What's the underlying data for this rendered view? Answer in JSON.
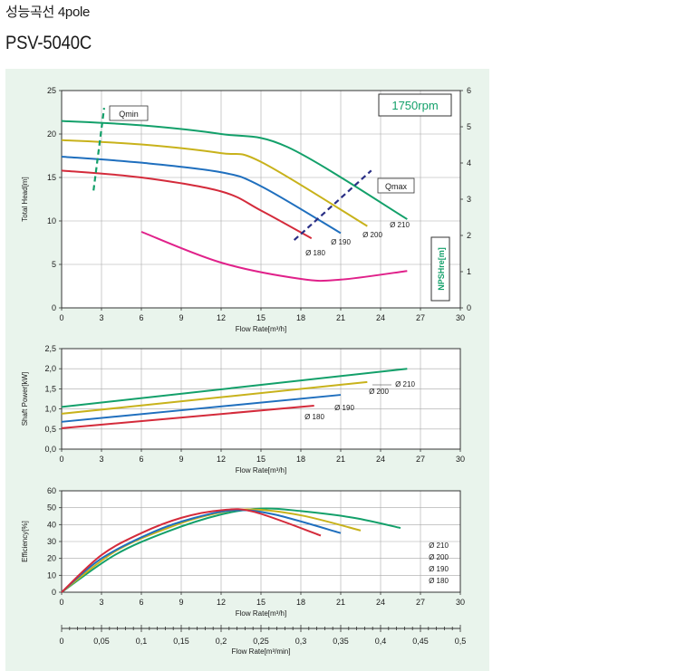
{
  "header": {
    "korean_title": "성능곡선 4pole",
    "model": "PSV-5040C"
  },
  "colors": {
    "d210": "#13a06a",
    "d200": "#c8b21b",
    "d190": "#1f6fbe",
    "d180": "#d42b3b",
    "npsh": "#e0218a",
    "qline": "#13a06a",
    "qmax_line": "#2a2f85",
    "panel_bg": "#e9f4ec",
    "grid": "#a8a8a8"
  },
  "chart_data": [
    {
      "type": "line",
      "title": "",
      "xlabel": "Flow Rate[m³/h]",
      "ylabel": "Total Head[m]",
      "y2label": "NPSHre[m]",
      "speed_label": "1750rpm",
      "xlim": [
        0,
        30
      ],
      "ylim": [
        0,
        25
      ],
      "y2lim": [
        0,
        6
      ],
      "x_ticks": [
        "0",
        "3",
        "6",
        "9",
        "12",
        "15",
        "18",
        "21",
        "24",
        "27",
        "30"
      ],
      "y_ticks": [
        "0",
        "5",
        "10",
        "15",
        "20",
        "25"
      ],
      "y2_ticks": [
        "0",
        "1",
        "2",
        "3",
        "4",
        "5",
        "6"
      ],
      "grid": true,
      "series": [
        {
          "name": "Ø 210",
          "color": "d210",
          "x": [
            0,
            6,
            12,
            17,
            26
          ],
          "y": [
            21.5,
            21,
            20,
            18.5,
            10.2
          ]
        },
        {
          "name": "Ø 200",
          "color": "d200",
          "x": [
            0,
            6,
            12,
            15,
            23
          ],
          "y": [
            19.3,
            18.8,
            17.8,
            16.8,
            9.4
          ]
        },
        {
          "name": "Ø 190",
          "color": "d190",
          "x": [
            0,
            6,
            12,
            15,
            21
          ],
          "y": [
            17.4,
            16.7,
            15.6,
            14,
            8.6
          ]
        },
        {
          "name": "Ø 180",
          "color": "d180",
          "x": [
            0,
            6,
            12,
            15,
            18.8
          ],
          "y": [
            15.8,
            15,
            13.4,
            11.2,
            8
          ]
        },
        {
          "name": "NPSHre",
          "color": "npsh",
          "axis": "y2",
          "x": [
            6,
            12,
            18,
            21,
            26
          ],
          "y": [
            2.1,
            1.25,
            0.8,
            0.78,
            1.02
          ]
        }
      ],
      "annotations": {
        "qmin": "Qmin",
        "qmax": "Qmax",
        "qmin_line": {
          "x": [
            2.4,
            3.2
          ],
          "y": [
            13.5,
            23
          ]
        },
        "qmax_line": {
          "x": [
            17.5,
            23.3
          ],
          "y": [
            7.8,
            15.8
          ]
        }
      }
    },
    {
      "type": "line",
      "xlabel": "Flow Rate[m³/h]",
      "ylabel": "Shaft Power[kW]",
      "xlim": [
        0,
        30
      ],
      "ylim": [
        0,
        2.5
      ],
      "x_ticks": [
        "0",
        "3",
        "6",
        "9",
        "12",
        "15",
        "18",
        "21",
        "24",
        "27",
        "30"
      ],
      "y_ticks": [
        "0,0",
        "0,5",
        "1,0",
        "1,5",
        "2,0",
        "2,5"
      ],
      "grid": true,
      "series": [
        {
          "name": "Ø 210",
          "color": "d210",
          "x": [
            0,
            26
          ],
          "y": [
            1.05,
            2.0
          ]
        },
        {
          "name": "Ø 200",
          "color": "d200",
          "x": [
            0,
            23
          ],
          "y": [
            0.88,
            1.67
          ]
        },
        {
          "name": "Ø 190",
          "color": "d190",
          "x": [
            0,
            21
          ],
          "y": [
            0.68,
            1.35
          ]
        },
        {
          "name": "Ø 180",
          "color": "d180",
          "x": [
            0,
            19
          ],
          "y": [
            0.52,
            1.08
          ]
        }
      ]
    },
    {
      "type": "line",
      "xlabel": "Flow Rate[m³/h]",
      "x2label": "Flow Rate[m³/min]",
      "ylabel": "Efficiency[%]",
      "xlim": [
        0,
        30
      ],
      "ylim": [
        0,
        60
      ],
      "x_ticks": [
        "0",
        "3",
        "6",
        "9",
        "12",
        "15",
        "18",
        "21",
        "24",
        "27",
        "30"
      ],
      "x2_ticks": [
        "0",
        "0,05",
        "0,1",
        "0,15",
        "0,2",
        "0,25",
        "0,3",
        "0,35",
        "0,4",
        "0,45",
        "0,5"
      ],
      "y_ticks": [
        "0",
        "10",
        "20",
        "30",
        "40",
        "50",
        "60"
      ],
      "grid": true,
      "legend": [
        "Ø 210",
        "Ø 200",
        "Ø 190",
        "Ø 180"
      ],
      "series": [
        {
          "name": "Ø 210",
          "color": "d210",
          "x": [
            0,
            4,
            8,
            12,
            15,
            18,
            22,
            25.5
          ],
          "y": [
            0,
            22,
            36,
            46,
            49.5,
            48,
            44,
            38
          ]
        },
        {
          "name": "Ø 200",
          "color": "d200",
          "x": [
            0,
            4,
            8,
            11,
            14,
            18,
            22.5
          ],
          "y": [
            0,
            24,
            38,
            45.5,
            49,
            45.5,
            36.5
          ]
        },
        {
          "name": "Ø 190",
          "color": "d190",
          "x": [
            0,
            3,
            7,
            10,
            13,
            16,
            21
          ],
          "y": [
            0,
            20,
            36,
            44,
            48.5,
            46,
            35
          ]
        },
        {
          "name": "Ø 180",
          "color": "d180",
          "x": [
            0,
            3,
            6,
            9,
            12,
            14.5,
            19.5
          ],
          "y": [
            0,
            22,
            35,
            44,
            48.5,
            47.5,
            33.5
          ]
        }
      ]
    }
  ]
}
